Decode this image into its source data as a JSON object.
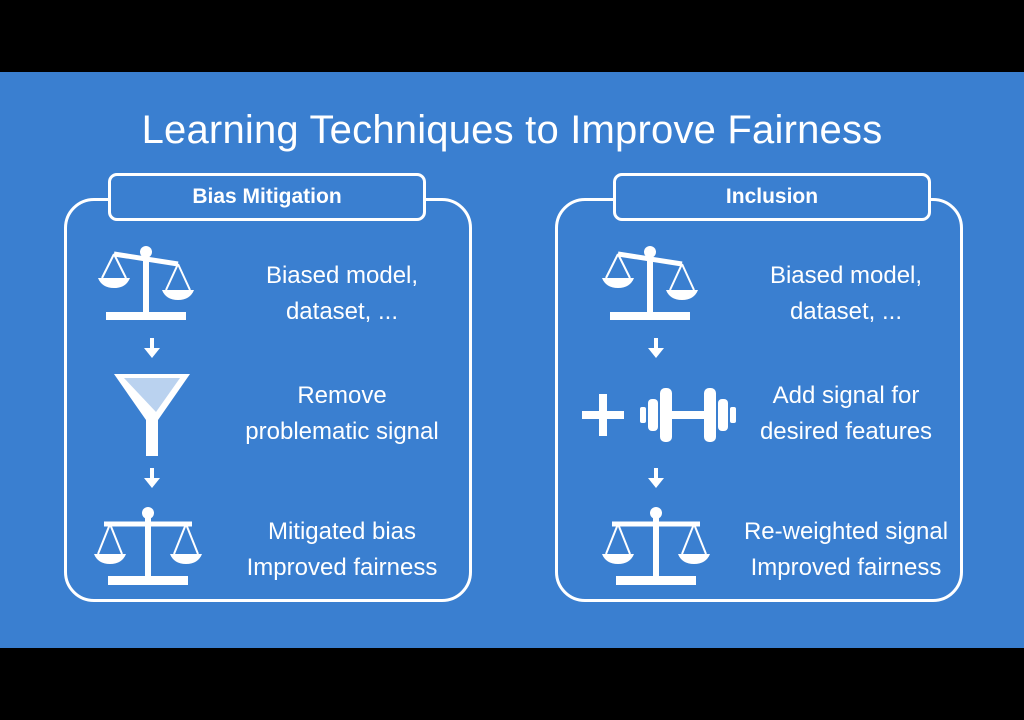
{
  "title": "Learning Techniques to Improve Fairness",
  "left_panel": {
    "header": "Bias Mitigation",
    "steps": [
      {
        "line1": "Biased model,",
        "line2": "dataset, ...",
        "icon": "unbalanced-scale-icon"
      },
      {
        "line1": "Remove",
        "line2": "problematic signal",
        "icon": "funnel-icon"
      },
      {
        "line1": "Mitigated bias",
        "line2": "Improved fairness",
        "icon": "balanced-scale-icon"
      }
    ]
  },
  "right_panel": {
    "header": "Inclusion",
    "steps": [
      {
        "line1": "Biased model,",
        "line2": "dataset, ...",
        "icon": "unbalanced-scale-icon"
      },
      {
        "line1": "Add signal for",
        "line2": "desired features",
        "icon": "plus-dumbbell-icon"
      },
      {
        "line1": "Re-weighted signal",
        "line2": "Improved fairness",
        "icon": "balanced-scale-icon"
      }
    ]
  },
  "colors": {
    "background": "#3a7fd0",
    "foreground": "#ffffff",
    "letterbox": "#000000"
  }
}
